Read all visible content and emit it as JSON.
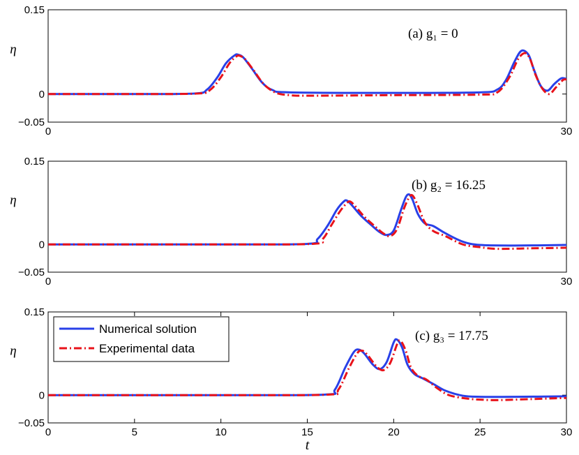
{
  "chart_data": [
    {
      "type": "line",
      "annotation": "(a) g₁ = 0",
      "ylabel": "η",
      "xlabel": "",
      "xlim": [
        0,
        30
      ],
      "ylim": [
        -0.05,
        0.15
      ],
      "xticks": [
        "0",
        "30"
      ],
      "yticks": [
        "0.15",
        "0",
        "−0.05"
      ],
      "series": [
        {
          "name": "Numerical solution",
          "color": "#2940e8",
          "x": [
            0,
            5,
            8.5,
            9.2,
            9.8,
            10.3,
            10.8,
            11.0,
            11.3,
            11.8,
            12.4,
            13.0,
            14.0,
            20,
            25,
            26.0,
            26.5,
            27.0,
            27.4,
            27.8,
            28.1,
            28.5,
            28.9,
            29.3,
            29.7,
            30
          ],
          "y": [
            0,
            0,
            0.001,
            0.008,
            0.03,
            0.055,
            0.069,
            0.07,
            0.065,
            0.045,
            0.02,
            0.007,
            0.003,
            0.002,
            0.003,
            0.008,
            0.025,
            0.058,
            0.077,
            0.07,
            0.045,
            0.015,
            0.006,
            0.018,
            0.028,
            0.027
          ]
        },
        {
          "name": "Experimental data",
          "color": "#e8121a",
          "x": [
            0,
            5,
            8.7,
            9.4,
            10.0,
            10.5,
            10.9,
            11.1,
            11.4,
            11.9,
            12.5,
            13.2,
            14.0,
            15.0,
            20,
            25,
            26.0,
            26.7,
            27.2,
            27.6,
            27.9,
            28.2,
            28.6,
            29.0,
            29.4,
            29.8,
            30
          ],
          "y": [
            0,
            0,
            0.001,
            0.008,
            0.03,
            0.055,
            0.067,
            0.068,
            0.062,
            0.042,
            0.017,
            0.002,
            -0.002,
            -0.003,
            -0.002,
            -0.001,
            0.003,
            0.03,
            0.062,
            0.073,
            0.062,
            0.035,
            0.01,
            0.0,
            0.012,
            0.025,
            0.026
          ]
        }
      ]
    },
    {
      "type": "line",
      "annotation": "(b) g₂ = 16.25",
      "ylabel": "η",
      "xlabel": "",
      "xlim": [
        0,
        30
      ],
      "ylim": [
        -0.05,
        0.15
      ],
      "xticks": [
        "0",
        "30"
      ],
      "yticks": [
        "0.15",
        "0",
        "−0.05"
      ],
      "series": [
        {
          "name": "Numerical solution",
          "color": "#2940e8",
          "x": [
            0,
            10,
            15,
            15.6,
            16.2,
            16.7,
            17.1,
            17.3,
            17.6,
            18.1,
            18.7,
            19.2,
            19.6,
            20.0,
            20.4,
            20.7,
            20.9,
            21.1,
            21.4,
            21.8,
            22.3,
            23.0,
            24.0,
            25.0,
            27.0,
            30
          ],
          "y": [
            0,
            0,
            0.001,
            0.01,
            0.035,
            0.062,
            0.077,
            0.079,
            0.07,
            0.052,
            0.035,
            0.022,
            0.017,
            0.025,
            0.06,
            0.085,
            0.09,
            0.08,
            0.055,
            0.038,
            0.033,
            0.02,
            0.005,
            -0.001,
            -0.002,
            -0.001
          ]
        },
        {
          "name": "Experimental data",
          "color": "#e8121a",
          "x": [
            0,
            10,
            15.3,
            15.9,
            16.4,
            16.9,
            17.3,
            17.5,
            17.8,
            18.3,
            18.9,
            19.4,
            19.8,
            20.2,
            20.6,
            20.9,
            21.1,
            21.4,
            21.8,
            22.3,
            23.0,
            24.0,
            25.0,
            26.0,
            28.0,
            30
          ],
          "y": [
            0,
            0,
            0.001,
            0.01,
            0.035,
            0.06,
            0.075,
            0.077,
            0.068,
            0.05,
            0.033,
            0.02,
            0.015,
            0.028,
            0.065,
            0.085,
            0.088,
            0.07,
            0.04,
            0.024,
            0.015,
            0.0,
            -0.005,
            -0.008,
            -0.007,
            -0.006
          ]
        }
      ]
    },
    {
      "type": "line",
      "annotation": "(c) g₃ = 17.75",
      "ylabel": "η",
      "xlabel": "t",
      "xlim": [
        0,
        30
      ],
      "ylim": [
        -0.05,
        0.15
      ],
      "xticks": [
        "0",
        "5",
        "10",
        "15",
        "20",
        "25",
        "30"
      ],
      "yticks": [
        "0.15",
        "0",
        "−0.05"
      ],
      "legend": [
        "Numerical solution",
        "Experimental data"
      ],
      "series": [
        {
          "name": "Numerical solution",
          "color": "#2940e8",
          "x": [
            0,
            10,
            16.0,
            16.6,
            17.2,
            17.7,
            18.0,
            18.3,
            18.8,
            19.2,
            19.6,
            20.0,
            20.2,
            20.5,
            20.8,
            21.2,
            21.7,
            22.3,
            23.0,
            24.0,
            25.0,
            27.0,
            30
          ],
          "y": [
            0,
            0,
            0.001,
            0.01,
            0.05,
            0.078,
            0.082,
            0.075,
            0.055,
            0.047,
            0.06,
            0.095,
            0.1,
            0.085,
            0.055,
            0.038,
            0.03,
            0.02,
            0.008,
            -0.001,
            -0.003,
            -0.003,
            -0.002
          ]
        },
        {
          "name": "Experimental data",
          "color": "#e8121a",
          "x": [
            0,
            10,
            16.2,
            16.8,
            17.4,
            17.9,
            18.2,
            18.5,
            19.0,
            19.4,
            19.8,
            20.2,
            20.4,
            20.7,
            21.0,
            21.4,
            21.9,
            22.5,
            23.2,
            24.2,
            25.0,
            26.0,
            28.0,
            30
          ],
          "y": [
            0,
            0,
            0.001,
            0.01,
            0.048,
            0.076,
            0.08,
            0.072,
            0.052,
            0.045,
            0.058,
            0.092,
            0.098,
            0.08,
            0.05,
            0.035,
            0.028,
            0.013,
            0.0,
            -0.006,
            -0.008,
            -0.009,
            -0.007,
            -0.005
          ]
        }
      ]
    }
  ]
}
